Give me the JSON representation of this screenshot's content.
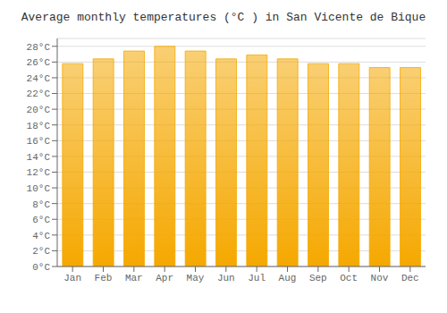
{
  "chart_data": {
    "type": "bar",
    "title": "Average monthly temperatures (°C ) in San Vicente de Bique",
    "categories": [
      "Jan",
      "Feb",
      "Mar",
      "Apr",
      "May",
      "Jun",
      "Jul",
      "Aug",
      "Sep",
      "Oct",
      "Nov",
      "Dec"
    ],
    "values": [
      25.8,
      26.4,
      27.4,
      28.0,
      27.4,
      26.4,
      26.9,
      26.4,
      25.8,
      25.8,
      25.3,
      25.3
    ],
    "color": "#F5A800",
    "ylim": [
      0,
      29
    ],
    "yticks": [
      {
        "value": 0,
        "label": "0°C"
      },
      {
        "value": 2,
        "label": "2°C"
      },
      {
        "value": 4,
        "label": "4°C"
      },
      {
        "value": 6,
        "label": "6°C"
      },
      {
        "value": 8,
        "label": "8°C"
      },
      {
        "value": 10,
        "label": "10°C"
      },
      {
        "value": 12,
        "label": "12°C"
      },
      {
        "value": 14,
        "label": "14°C"
      },
      {
        "value": 16,
        "label": "16°C"
      },
      {
        "value": 18,
        "label": "18°C"
      },
      {
        "value": 20,
        "label": "20°C"
      },
      {
        "value": 22,
        "label": "22°C"
      },
      {
        "value": 24,
        "label": "24°C"
      },
      {
        "value": 26,
        "label": "26°C"
      },
      {
        "value": 28,
        "label": "28°C"
      }
    ],
    "grid": true
  }
}
